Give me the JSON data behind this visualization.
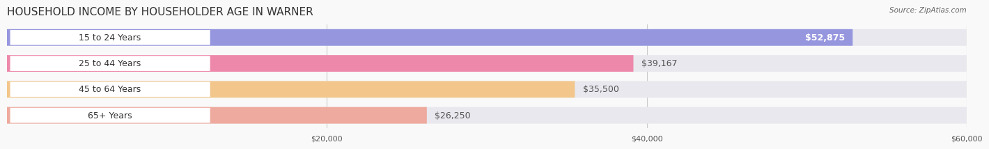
{
  "title": "HOUSEHOLD INCOME BY HOUSEHOLDER AGE IN WARNER",
  "source": "Source: ZipAtlas.com",
  "categories": [
    "15 to 24 Years",
    "25 to 44 Years",
    "45 to 64 Years",
    "65+ Years"
  ],
  "values": [
    52875,
    39167,
    35500,
    26250
  ],
  "bar_colors": [
    "#8888dd",
    "#f077a0",
    "#f5c07a",
    "#f0a090"
  ],
  "bar_bg_color": "#eeeeee",
  "value_labels": [
    "$52,875",
    "$39,167",
    "$35,500",
    "$26,250"
  ],
  "xlim": [
    0,
    60000
  ],
  "xticks": [
    0,
    20000,
    40000,
    60000
  ],
  "xtick_labels": [
    "$20,000",
    "$40,000",
    "$60,000"
  ],
  "background_color": "#f9f9f9",
  "title_fontsize": 11,
  "label_fontsize": 9,
  "bar_height": 0.62,
  "bar_alpha": 0.85
}
